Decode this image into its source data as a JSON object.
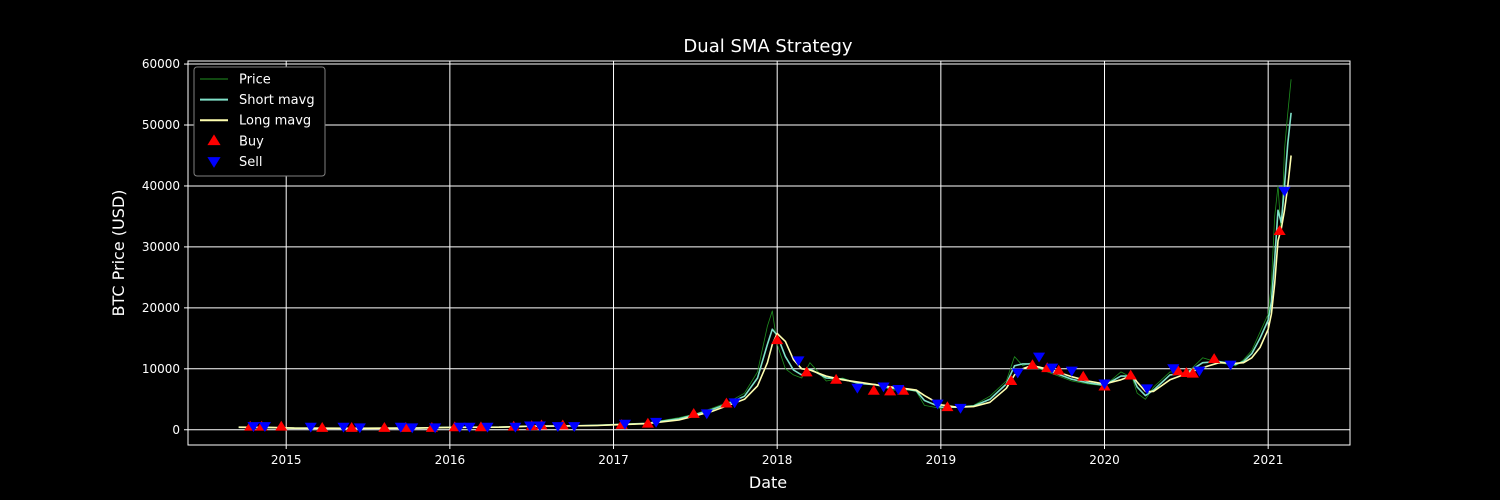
{
  "chart_data": {
    "type": "line",
    "title": "Dual SMA Strategy",
    "xlabel": "Date",
    "ylabel": "BTC Price (USD)",
    "xlim": [
      2014.4,
      2021.5
    ],
    "ylim": [
      -2500,
      60500
    ],
    "x_ticks": [
      2015,
      2016,
      2017,
      2018,
      2019,
      2020,
      2021
    ],
    "y_ticks": [
      0,
      10000,
      20000,
      30000,
      40000,
      50000,
      60000
    ],
    "grid": true,
    "legend_position": "top-left",
    "legend": [
      {
        "label": "Price",
        "color": "#1f8f1f",
        "kind": "line"
      },
      {
        "label": "Short mavg",
        "color": "#7fe0c8",
        "kind": "line"
      },
      {
        "label": "Long mavg",
        "color": "#ffffb0",
        "kind": "line"
      },
      {
        "label": "Buy",
        "color": "#ff0000",
        "kind": "up-triangle"
      },
      {
        "label": "Sell",
        "color": "#0000ff",
        "kind": "down-triangle"
      }
    ],
    "series": [
      {
        "name": "Price",
        "color": "#1f8f1f",
        "x": [
          2014.71,
          2014.9,
          2015.05,
          2015.2,
          2015.4,
          2015.6,
          2015.8,
          2015.95,
          2016.1,
          2016.3,
          2016.5,
          2016.7,
          2016.9,
          2017.05,
          2017.2,
          2017.4,
          2017.5,
          2017.6,
          2017.7,
          2017.8,
          2017.88,
          2017.94,
          2017.97,
          2018.0,
          2018.05,
          2018.1,
          2018.15,
          2018.2,
          2018.3,
          2018.4,
          2018.5,
          2018.6,
          2018.7,
          2018.8,
          2018.85,
          2018.9,
          2019.0,
          2019.1,
          2019.2,
          2019.3,
          2019.4,
          2019.45,
          2019.5,
          2019.55,
          2019.6,
          2019.7,
          2019.8,
          2019.9,
          2020.0,
          2020.1,
          2020.17,
          2020.2,
          2020.25,
          2020.3,
          2020.4,
          2020.5,
          2020.6,
          2020.7,
          2020.8,
          2020.85,
          2020.9,
          2020.95,
          2021.0,
          2021.02,
          2021.04,
          2021.06,
          2021.08,
          2021.1,
          2021.12,
          2021.14
        ],
        "y": [
          400,
          350,
          250,
          250,
          240,
          260,
          300,
          400,
          420,
          420,
          650,
          600,
          750,
          950,
          1100,
          2000,
          2600,
          3500,
          4500,
          6000,
          9500,
          17000,
          19500,
          14000,
          10000,
          9000,
          8500,
          11000,
          8000,
          8500,
          7500,
          7500,
          6500,
          6500,
          6300,
          4000,
          3500,
          3800,
          4000,
          5500,
          8000,
          12000,
          10500,
          11000,
          10000,
          9000,
          8000,
          7500,
          7200,
          9500,
          8500,
          6000,
          5000,
          7000,
          9500,
          9200,
          11800,
          11000,
          10500,
          11500,
          13000,
          16000,
          19000,
          24000,
          35000,
          40000,
          32000,
          46000,
          52000,
          57500
        ]
      },
      {
        "name": "Short mavg",
        "color": "#7fe0c8",
        "x": [
          2014.71,
          2014.9,
          2015.05,
          2015.2,
          2015.4,
          2015.6,
          2015.8,
          2015.95,
          2016.1,
          2016.3,
          2016.5,
          2016.7,
          2016.9,
          2017.05,
          2017.2,
          2017.4,
          2017.5,
          2017.6,
          2017.7,
          2017.8,
          2017.88,
          2017.94,
          2017.97,
          2018.0,
          2018.05,
          2018.1,
          2018.15,
          2018.2,
          2018.3,
          2018.4,
          2018.5,
          2018.6,
          2018.7,
          2018.8,
          2018.85,
          2018.9,
          2019.0,
          2019.1,
          2019.2,
          2019.3,
          2019.4,
          2019.45,
          2019.5,
          2019.55,
          2019.6,
          2019.7,
          2019.8,
          2019.9,
          2020.0,
          2020.1,
          2020.17,
          2020.2,
          2020.25,
          2020.3,
          2020.4,
          2020.5,
          2020.6,
          2020.7,
          2020.8,
          2020.85,
          2020.9,
          2020.95,
          2021.0,
          2021.02,
          2021.04,
          2021.06,
          2021.08,
          2021.1,
          2021.12,
          2021.14
        ],
        "y": [
          410,
          360,
          260,
          250,
          240,
          255,
          290,
          380,
          420,
          420,
          620,
          610,
          730,
          900,
          1050,
          1800,
          2500,
          3300,
          4300,
          5500,
          8500,
          14000,
          16500,
          15500,
          12000,
          9800,
          9000,
          10000,
          8500,
          8300,
          7600,
          7400,
          6800,
          6600,
          6400,
          4800,
          3700,
          3700,
          3900,
          5000,
          7500,
          10500,
          10800,
          10800,
          10200,
          9300,
          8300,
          7700,
          7300,
          8800,
          8800,
          7000,
          5600,
          6500,
          9000,
          9300,
          11000,
          11200,
          10700,
          11200,
          12500,
          15000,
          18000,
          21000,
          28000,
          36000,
          34000,
          40000,
          47000,
          52000
        ]
      },
      {
        "name": "Long mavg",
        "color": "#ffffb0",
        "x": [
          2014.71,
          2014.9,
          2015.05,
          2015.2,
          2015.4,
          2015.6,
          2015.8,
          2015.95,
          2016.1,
          2016.3,
          2016.5,
          2016.7,
          2016.9,
          2017.05,
          2017.2,
          2017.4,
          2017.5,
          2017.6,
          2017.7,
          2017.8,
          2017.88,
          2017.94,
          2017.97,
          2018.0,
          2018.05,
          2018.1,
          2018.15,
          2018.2,
          2018.3,
          2018.4,
          2018.5,
          2018.6,
          2018.7,
          2018.8,
          2018.85,
          2018.9,
          2019.0,
          2019.1,
          2019.2,
          2019.3,
          2019.4,
          2019.45,
          2019.5,
          2019.55,
          2019.6,
          2019.7,
          2019.8,
          2019.9,
          2020.0,
          2020.1,
          2020.17,
          2020.2,
          2020.25,
          2020.3,
          2020.4,
          2020.5,
          2020.6,
          2020.7,
          2020.8,
          2020.85,
          2020.9,
          2020.95,
          2021.0,
          2021.02,
          2021.04,
          2021.06,
          2021.08,
          2021.1,
          2021.12,
          2021.14
        ],
        "y": [
          420,
          380,
          280,
          255,
          245,
          250,
          280,
          360,
          410,
          420,
          580,
          610,
          700,
          850,
          1000,
          1600,
          2300,
          3000,
          4000,
          5000,
          7200,
          11000,
          14000,
          15800,
          14500,
          11500,
          10000,
          9800,
          8800,
          8200,
          7800,
          7400,
          7000,
          6700,
          6500,
          5600,
          4100,
          3700,
          3800,
          4500,
          6800,
          9000,
          10000,
          10500,
          10300,
          9600,
          8700,
          8000,
          7500,
          8200,
          8900,
          7800,
          6300,
          6300,
          8200,
          9200,
          10200,
          11000,
          10900,
          11000,
          11800,
          13500,
          16500,
          19000,
          24000,
          31000,
          33000,
          36000,
          40000,
          45000
        ]
      }
    ],
    "buy_signals": {
      "name": "Buy",
      "color": "#ff0000",
      "x": [
        2014.78,
        2014.85,
        2014.97,
        2015.22,
        2015.4,
        2015.6,
        2015.73,
        2015.89,
        2016.03,
        2016.19,
        2016.39,
        2016.5,
        2016.56,
        2016.69,
        2017.05,
        2017.21,
        2017.49,
        2017.69,
        2018.0,
        2018.18,
        2018.36,
        2018.59,
        2018.69,
        2018.77,
        2019.04,
        2019.43,
        2019.56,
        2019.65,
        2019.72,
        2019.87,
        2020.0,
        2020.16,
        2020.45,
        2020.5,
        2020.54,
        2020.67,
        2021.07
      ],
      "y": [
        500,
        500,
        500,
        300,
        300,
        300,
        300,
        300,
        400,
        400,
        500,
        600,
        700,
        700,
        800,
        1000,
        2600,
        4300,
        14700,
        9400,
        8200,
        6400,
        6300,
        6400,
        3700,
        8000,
        10600,
        10100,
        9700,
        8700,
        7100,
        8900,
        9600,
        9300,
        9200,
        11600,
        32600
      ]
    },
    "sell_signals": {
      "name": "Sell",
      "color": "#0000ff",
      "x": [
        2014.8,
        2014.87,
        2015.15,
        2015.35,
        2015.45,
        2015.7,
        2015.77,
        2015.91,
        2016.06,
        2016.12,
        2016.23,
        2016.4,
        2016.49,
        2016.55,
        2016.66,
        2016.76,
        2017.07,
        2017.26,
        2017.57,
        2017.74,
        2018.13,
        2018.49,
        2018.65,
        2018.74,
        2018.98,
        2019.12,
        2019.47,
        2019.6,
        2019.68,
        2019.8,
        2020.0,
        2020.26,
        2020.42,
        2020.58,
        2020.77,
        2021.1
      ],
      "y": [
        600,
        600,
        500,
        500,
        400,
        500,
        400,
        400,
        500,
        500,
        500,
        500,
        700,
        700,
        600,
        600,
        1000,
        1300,
        2700,
        4500,
        11400,
        6900,
        7100,
        6700,
        4300,
        3600,
        9400,
        12000,
        10200,
        9700,
        7600,
        6800,
        10100,
        9700,
        10700,
        39200
      ]
    }
  }
}
